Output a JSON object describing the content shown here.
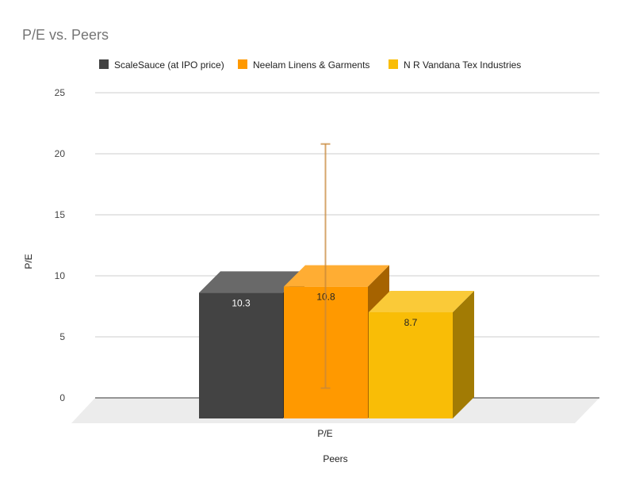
{
  "chart_data": {
    "type": "bar",
    "variant": "3d-column",
    "title": "P/E vs. Peers",
    "xlabel": "Peers",
    "ylabel": "P/E",
    "categories": [
      "P/E"
    ],
    "ylim": [
      0,
      25
    ],
    "yticks": [
      0,
      5,
      10,
      15,
      20,
      25
    ],
    "grid": true,
    "legend_position": "top",
    "series": [
      {
        "name": "ScaleSauce (at IPO price)",
        "values": [
          10.3
        ],
        "color": "#434343",
        "label_color": "#ffffff"
      },
      {
        "name": "Neelam Linens & Garments",
        "values": [
          10.8
        ],
        "color": "#ff9900",
        "label_color": "#222222",
        "error_bar": [
          0.8,
          20.8
        ]
      },
      {
        "name": "N R Vandana Tex Industries",
        "values": [
          8.7
        ],
        "color": "#f9bd06",
        "label_color": "#222222"
      }
    ],
    "data_labels": [
      "10.3",
      "10.8",
      "8.7"
    ]
  }
}
